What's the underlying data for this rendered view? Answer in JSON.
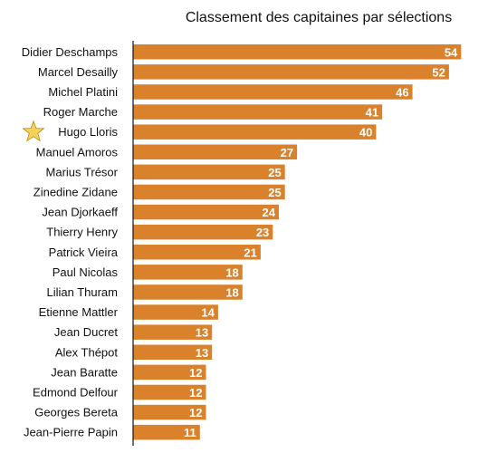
{
  "chart_data": {
    "type": "bar",
    "orientation": "horizontal",
    "title": "Classement des capitaines par sélections",
    "xlabel": "",
    "ylabel": "",
    "categories": [
      "Didier Deschamps",
      "Marcel Desailly",
      "Michel Platini",
      "Roger Marche",
      "Hugo Lloris",
      "Manuel Amoros",
      "Marius Trésor",
      "Zinedine Zidane",
      "Jean Djorkaeff",
      "Thierry Henry",
      "Patrick Vieira",
      "Paul Nicolas",
      "Lilian Thuram",
      "Etienne Mattler",
      "Jean Ducret",
      "Alex Thépot",
      "Jean Baratte",
      "Edmond Delfour",
      "Georges Bereta",
      "Jean-Pierre Papin"
    ],
    "values": [
      54,
      52,
      46,
      41,
      40,
      27,
      25,
      25,
      24,
      23,
      21,
      18,
      18,
      14,
      13,
      13,
      12,
      12,
      12,
      11
    ],
    "xlim": [
      0,
      55
    ],
    "grid": false,
    "legend": "none",
    "highlighted_category": "Hugo Lloris",
    "highlight_icon": "star-icon",
    "bar_color": "#d9822b",
    "value_label_color": "#ffffff",
    "star_color": "#f7d25a"
  }
}
